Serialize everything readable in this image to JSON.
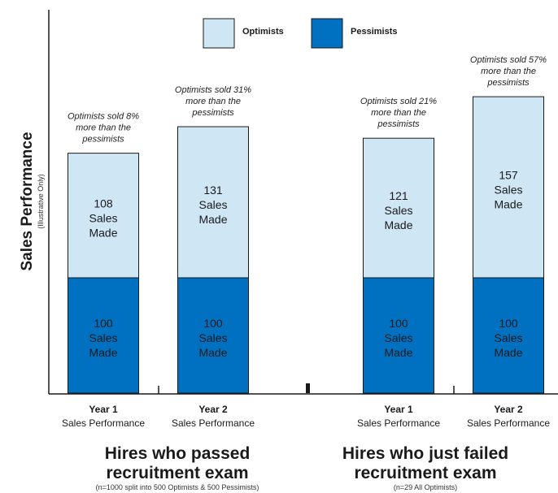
{
  "chart_data": {
    "type": "bar",
    "stacked": true,
    "ylabel": "Sales Performance",
    "ylabel_note": "(Illustrative Only)",
    "legend": {
      "placement": "top-center",
      "entries": [
        "Optimists",
        "Pessimists"
      ]
    },
    "colors": {
      "Optimists": "#cfe6f5",
      "Pessimists": "#0070c0"
    },
    "categories": [
      {
        "line1": "Year 1",
        "line2": "Sales Performance"
      },
      {
        "line1": "Year 2",
        "line2": "Sales Performance"
      },
      {
        "line1": "Year 1",
        "line2": "Sales Performance"
      },
      {
        "line1": "Year 2",
        "line2": "Sales Performance"
      }
    ],
    "series": [
      {
        "name": "Pessimists",
        "values": [
          100,
          100,
          100,
          100
        ],
        "labels": [
          [
            "100",
            "Sales",
            "Made"
          ],
          [
            "100",
            "Sales",
            "Made"
          ],
          [
            "100",
            "Sales",
            "Made"
          ],
          [
            "100",
            "Sales",
            "Made"
          ]
        ]
      },
      {
        "name": "Optimists",
        "values": [
          108,
          131,
          121,
          157
        ],
        "labels": [
          [
            "108",
            "Sales",
            "Made"
          ],
          [
            "131",
            "Sales",
            "Made"
          ],
          [
            "121",
            "Sales",
            "Made"
          ],
          [
            "157",
            "Sales",
            "Made"
          ]
        ]
      }
    ],
    "annotations": [
      [
        "Optimists sold 8%",
        "more than the",
        "pessimists"
      ],
      [
        "Optimists sold 31%",
        "more than the",
        "pessimists"
      ],
      [
        "Optimists sold 21%",
        "more than the",
        "pessimists"
      ],
      [
        "Optimists sold 57%",
        "more than the",
        "pessimists"
      ]
    ],
    "groups": [
      {
        "title": [
          "Hires who passed",
          "recruitment exam"
        ],
        "note": "(n=1000 split into 500 Optimists & 500 Pessimists)"
      },
      {
        "title": [
          "Hires who just failed",
          "recruitment exam"
        ],
        "note": "(n=29 All Optimists)"
      }
    ]
  }
}
